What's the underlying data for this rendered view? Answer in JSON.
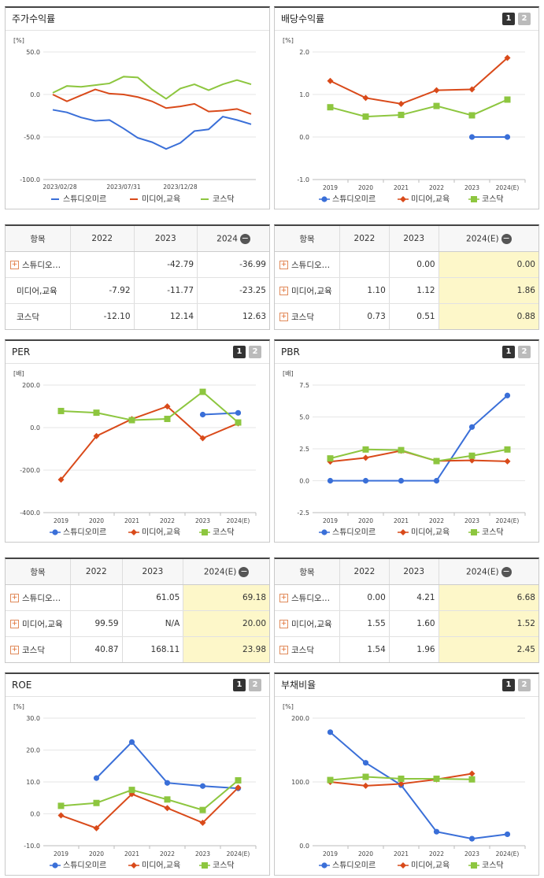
{
  "colors": {
    "series1": "#3a6fd8",
    "series2": "#d94a1a",
    "series3": "#8dc63f"
  },
  "panels": [
    {
      "id": "stock",
      "title": "주가수익률",
      "unit": "[%]",
      "has_pager": false
    },
    {
      "id": "dividend",
      "title": "배당수익률",
      "unit": "[%]",
      "has_pager": true
    },
    {
      "id": "per",
      "title": "PER",
      "unit": "[배]",
      "has_pager": true
    },
    {
      "id": "pbr",
      "title": "PBR",
      "unit": "[배]",
      "has_pager": true
    },
    {
      "id": "roe",
      "title": "ROE",
      "unit": "[%]",
      "has_pager": true
    },
    {
      "id": "debt",
      "title": "부채비율",
      "unit": "[%]",
      "has_pager": true
    }
  ],
  "pager": {
    "b1": "1",
    "b2": "2"
  },
  "legend": [
    "스튜디오미르",
    "미디어,교육",
    "코스닥"
  ],
  "chart_data": [
    {
      "id": "stock",
      "type": "line",
      "title": "주가수익률",
      "x_ticks": [
        "2023/02/28",
        "2023/07/31",
        "2023/12/28"
      ],
      "y_ticks": [
        "50.0",
        "0.0",
        "-50.0",
        "-100.0"
      ],
      "ylim": [
        -100,
        50
      ],
      "series": [
        {
          "name": "스튜디오미르",
          "values": [
            -18,
            -21,
            -27,
            -31,
            -30,
            -40,
            -51,
            -56,
            -64,
            -57,
            -43,
            -41,
            -26,
            -30,
            -35
          ]
        },
        {
          "name": "미디어,교육",
          "values": [
            0,
            -8,
            -1,
            6,
            1,
            0,
            -3,
            -8,
            -16,
            -14,
            -11,
            -20,
            -19,
            -17,
            -23
          ]
        },
        {
          "name": "코스닥",
          "values": [
            2,
            10,
            9,
            11,
            13,
            21,
            20,
            6,
            -5,
            7,
            12,
            5,
            12,
            17,
            12
          ]
        }
      ]
    },
    {
      "id": "dividend",
      "type": "line",
      "title": "배당수익률",
      "categories": [
        "2019",
        "2020",
        "2021",
        "2022",
        "2023",
        "2024(E)"
      ],
      "y_ticks": [
        "2.0",
        "1.0",
        "0.0",
        "-1.0"
      ],
      "ylim": [
        -1,
        2
      ],
      "series": [
        {
          "name": "스튜디오미르",
          "values": [
            null,
            null,
            null,
            null,
            0.0,
            0.0
          ]
        },
        {
          "name": "미디어,교육",
          "values": [
            1.32,
            0.92,
            0.78,
            1.1,
            1.12,
            1.86
          ]
        },
        {
          "name": "코스닥",
          "values": [
            0.7,
            0.48,
            0.52,
            0.73,
            0.51,
            0.88
          ]
        }
      ]
    },
    {
      "id": "per",
      "type": "line",
      "title": "PER",
      "categories": [
        "2019",
        "2020",
        "2021",
        "2022",
        "2023",
        "2024(E)"
      ],
      "y_ticks": [
        "200.0",
        "0.0",
        "-200.0",
        "-400.0"
      ],
      "ylim": [
        -400,
        200
      ],
      "series": [
        {
          "name": "스튜디오미르",
          "values": [
            null,
            null,
            null,
            null,
            61.05,
            69.18
          ]
        },
        {
          "name": "미디어,교육",
          "values": [
            -245,
            -40,
            40,
            99.59,
            -50,
            20.0
          ]
        },
        {
          "name": "코스닥",
          "values": [
            78,
            70,
            35,
            40.87,
            168.11,
            23.98
          ]
        }
      ]
    },
    {
      "id": "pbr",
      "type": "line",
      "title": "PBR",
      "categories": [
        "2019",
        "2020",
        "2021",
        "2022",
        "2023",
        "2024(E)"
      ],
      "y_ticks": [
        "7.5",
        "5.0",
        "2.5",
        "0.0",
        "-2.5"
      ],
      "ylim": [
        -2.5,
        7.5
      ],
      "series": [
        {
          "name": "스튜디오미르",
          "values": [
            0,
            0,
            0,
            0.0,
            4.21,
            6.68
          ]
        },
        {
          "name": "미디어,교육",
          "values": [
            1.5,
            1.8,
            2.35,
            1.55,
            1.6,
            1.52
          ]
        },
        {
          "name": "코스닥",
          "values": [
            1.75,
            2.45,
            2.4,
            1.54,
            1.96,
            2.45
          ]
        }
      ]
    },
    {
      "id": "roe",
      "type": "line",
      "title": "ROE",
      "categories": [
        "2019",
        "2020",
        "2021",
        "2022",
        "2023",
        "2024(E)"
      ],
      "y_ticks": [
        "30.0",
        "20.0",
        "10.0",
        "0.0",
        "-10.0"
      ],
      "ylim": [
        -10,
        30
      ],
      "series": [
        {
          "name": "스튜디오미르",
          "values": [
            null,
            11.2,
            22.5,
            9.7,
            8.7,
            8.0
          ]
        },
        {
          "name": "미디어,교육",
          "values": [
            -0.5,
            -4.5,
            6.2,
            1.8,
            -2.8,
            8.2
          ]
        },
        {
          "name": "코스닥",
          "values": [
            2.5,
            3.4,
            7.5,
            4.5,
            1.2,
            10.5
          ]
        }
      ]
    },
    {
      "id": "debt",
      "type": "line",
      "title": "부채비율",
      "categories": [
        "2019",
        "2020",
        "2021",
        "2022",
        "2023",
        "2024(E)"
      ],
      "y_ticks": [
        "200.0",
        "100.0",
        "0.0"
      ],
      "ylim": [
        0,
        200
      ],
      "series": [
        {
          "name": "스튜디오미르",
          "values": [
            178,
            130,
            95,
            22,
            11,
            18
          ]
        },
        {
          "name": "미디어,교육",
          "values": [
            100,
            94,
            97,
            104,
            113,
            null
          ]
        },
        {
          "name": "코스닥",
          "values": [
            103,
            108,
            105,
            105,
            104,
            null
          ]
        }
      ]
    }
  ],
  "tables": {
    "stock": {
      "headers": [
        "항목",
        "2022",
        "2023",
        "2024"
      ],
      "rows": [
        {
          "name": "스튜디오…",
          "plus": true,
          "cells": [
            "",
            "-42.79",
            "-36.99"
          ]
        },
        {
          "name": "미디어,교육",
          "plus": false,
          "cells": [
            "-7.92",
            "-11.77",
            "-23.25"
          ]
        },
        {
          "name": "코스닥",
          "plus": false,
          "cells": [
            "-12.10",
            "12.14",
            "12.63"
          ]
        }
      ]
    },
    "dividend": {
      "headers": [
        "항목",
        "2022",
        "2023",
        "2024(E)"
      ],
      "rows": [
        {
          "name": "스튜디오…",
          "plus": true,
          "cells": [
            "",
            "0.00",
            "0.00"
          ]
        },
        {
          "name": "미디어,교육",
          "plus": true,
          "cells": [
            "1.10",
            "1.12",
            "1.86"
          ]
        },
        {
          "name": "코스닥",
          "plus": true,
          "cells": [
            "0.73",
            "0.51",
            "0.88"
          ]
        }
      ]
    },
    "per": {
      "headers": [
        "항목",
        "2022",
        "2023",
        "2024(E)"
      ],
      "rows": [
        {
          "name": "스튜디오…",
          "plus": true,
          "cells": [
            "",
            "61.05",
            "69.18"
          ]
        },
        {
          "name": "미디어,교육",
          "plus": true,
          "cells": [
            "99.59",
            "N/A",
            "20.00"
          ]
        },
        {
          "name": "코스닥",
          "plus": true,
          "cells": [
            "40.87",
            "168.11",
            "23.98"
          ]
        }
      ]
    },
    "pbr": {
      "headers": [
        "항목",
        "2022",
        "2023",
        "2024(E)"
      ],
      "rows": [
        {
          "name": "스튜디오…",
          "plus": true,
          "cells": [
            "0.00",
            "4.21",
            "6.68"
          ]
        },
        {
          "name": "미디어,교육",
          "plus": true,
          "cells": [
            "1.55",
            "1.60",
            "1.52"
          ]
        },
        {
          "name": "코스닥",
          "plus": true,
          "cells": [
            "1.54",
            "1.96",
            "2.45"
          ]
        }
      ]
    }
  },
  "minus_icon": "−",
  "plus_icon": "+"
}
